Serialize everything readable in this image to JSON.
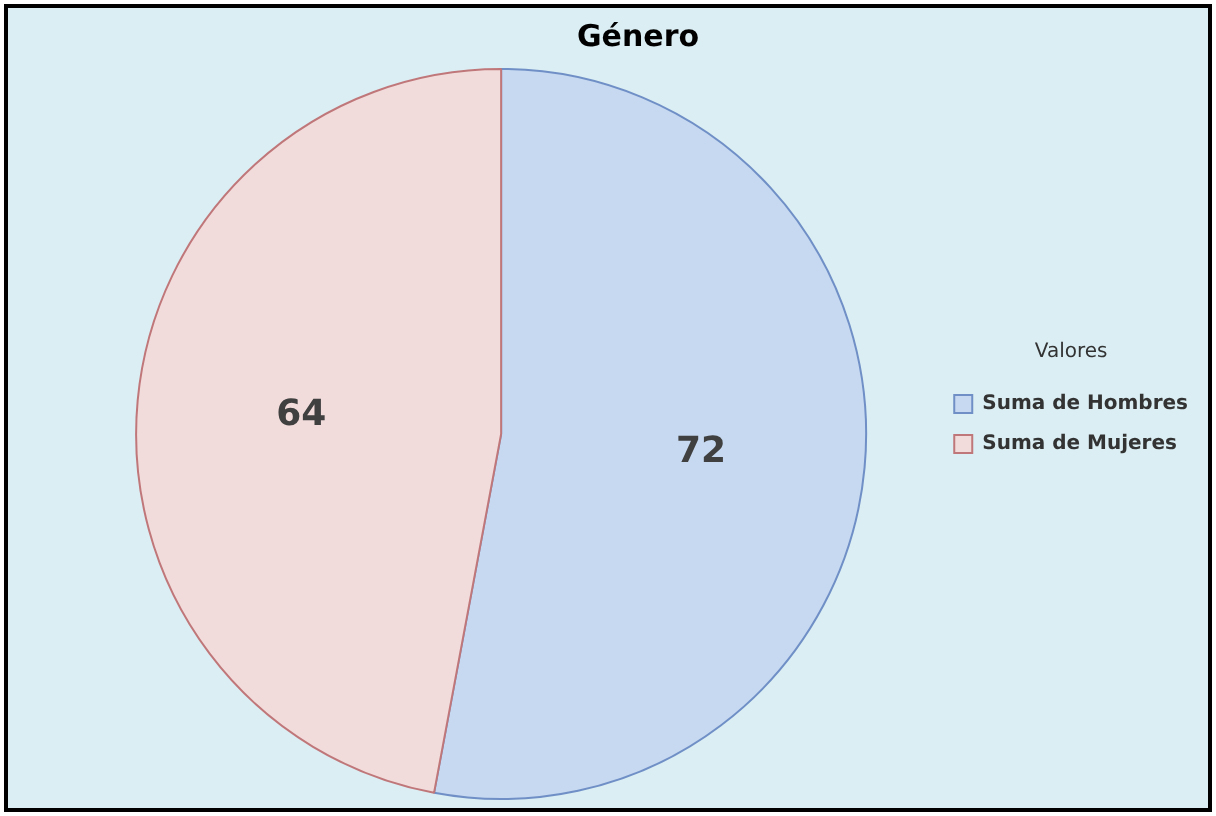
{
  "chart_data": {
    "type": "pie",
    "title": "Género",
    "legend_title": "Valores",
    "categories": [
      "Suma de Hombres",
      "Suma de Mujeres"
    ],
    "values": [
      72,
      64
    ],
    "colors": [
      "#c6d9f0",
      "#f2dcdb"
    ],
    "data_labels": true,
    "legend": "right"
  }
}
